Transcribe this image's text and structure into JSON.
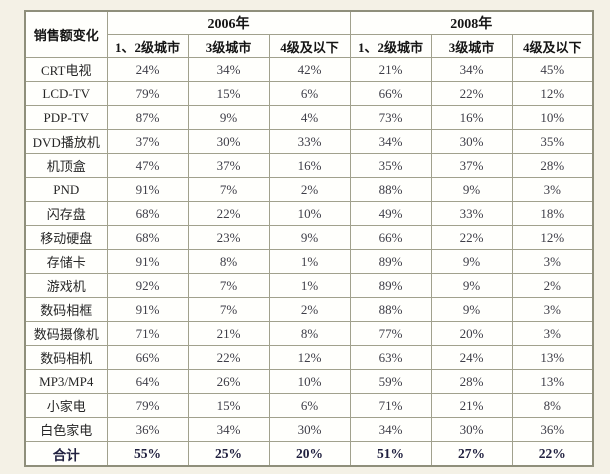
{
  "table": {
    "corner_label": "销售额变化",
    "year_groups": [
      {
        "label": "2006年",
        "columns": [
          "1、2级城市",
          "3级城市",
          "4级及以下"
        ]
      },
      {
        "label": "2008年",
        "columns": [
          "1、2级城市",
          "3级城市",
          "4级及以下"
        ]
      }
    ],
    "rows": [
      {
        "label": "CRT电视",
        "values": [
          "24%",
          "34%",
          "42%",
          "21%",
          "34%",
          "45%"
        ]
      },
      {
        "label": "LCD-TV",
        "values": [
          "79%",
          "15%",
          "6%",
          "66%",
          "22%",
          "12%"
        ]
      },
      {
        "label": "PDP-TV",
        "values": [
          "87%",
          "9%",
          "4%",
          "73%",
          "16%",
          "10%"
        ]
      },
      {
        "label": "DVD播放机",
        "values": [
          "37%",
          "30%",
          "33%",
          "34%",
          "30%",
          "35%"
        ]
      },
      {
        "label": "机顶盒",
        "values": [
          "47%",
          "37%",
          "16%",
          "35%",
          "37%",
          "28%"
        ]
      },
      {
        "label": "PND",
        "values": [
          "91%",
          "7%",
          "2%",
          "88%",
          "9%",
          "3%"
        ]
      },
      {
        "label": "闪存盘",
        "values": [
          "68%",
          "22%",
          "10%",
          "49%",
          "33%",
          "18%"
        ]
      },
      {
        "label": "移动硬盘",
        "values": [
          "68%",
          "23%",
          "9%",
          "66%",
          "22%",
          "12%"
        ]
      },
      {
        "label": "存储卡",
        "values": [
          "91%",
          "8%",
          "1%",
          "89%",
          "9%",
          "3%"
        ]
      },
      {
        "label": "游戏机",
        "values": [
          "92%",
          "7%",
          "1%",
          "89%",
          "9%",
          "2%"
        ]
      },
      {
        "label": "数码相框",
        "values": [
          "91%",
          "7%",
          "2%",
          "88%",
          "9%",
          "3%"
        ]
      },
      {
        "label": "数码摄像机",
        "values": [
          "71%",
          "21%",
          "8%",
          "77%",
          "20%",
          "3%"
        ]
      },
      {
        "label": "数码相机",
        "values": [
          "66%",
          "22%",
          "12%",
          "63%",
          "24%",
          "13%"
        ]
      },
      {
        "label": "MP3/MP4",
        "values": [
          "64%",
          "26%",
          "10%",
          "59%",
          "28%",
          "13%"
        ]
      },
      {
        "label": "小家电",
        "values": [
          "79%",
          "15%",
          "6%",
          "71%",
          "21%",
          "8%"
        ]
      },
      {
        "label": "白色家电",
        "values": [
          "36%",
          "34%",
          "30%",
          "34%",
          "30%",
          "36%"
        ]
      },
      {
        "label": "合计",
        "values": [
          "55%",
          "25%",
          "20%",
          "51%",
          "27%",
          "22%"
        ],
        "is_total": true
      }
    ]
  },
  "colors": {
    "page_background": "#f4f1e6",
    "cell_background": "#fffffc",
    "inner_border": "#a1a18d",
    "outer_border": "#8f8f7b",
    "value_text": "#3e3e48",
    "header_text": "#141414",
    "total_text": "#20203f"
  },
  "chart_data": {
    "type": "table",
    "title": "销售额变化",
    "column_groups": [
      "2006年",
      "2008年"
    ],
    "columns": [
      "销售额变化",
      "2006年 1、2级城市",
      "2006年 3级城市",
      "2006年 4级及以下",
      "2008年 1、2级城市",
      "2008年 3级城市",
      "2008年 4级及以下"
    ],
    "unit": "percent",
    "rows": [
      [
        "CRT电视",
        24,
        34,
        42,
        21,
        34,
        45
      ],
      [
        "LCD-TV",
        79,
        15,
        6,
        66,
        22,
        12
      ],
      [
        "PDP-TV",
        87,
        9,
        4,
        73,
        16,
        10
      ],
      [
        "DVD播放机",
        37,
        30,
        33,
        34,
        30,
        35
      ],
      [
        "机顶盒",
        47,
        37,
        16,
        35,
        37,
        28
      ],
      [
        "PND",
        91,
        7,
        2,
        88,
        9,
        3
      ],
      [
        "闪存盘",
        68,
        22,
        10,
        49,
        33,
        18
      ],
      [
        "移动硬盘",
        68,
        23,
        9,
        66,
        22,
        12
      ],
      [
        "存储卡",
        91,
        8,
        1,
        89,
        9,
        3
      ],
      [
        "游戏机",
        92,
        7,
        1,
        89,
        9,
        2
      ],
      [
        "数码相框",
        91,
        7,
        2,
        88,
        9,
        3
      ],
      [
        "数码摄像机",
        71,
        21,
        8,
        77,
        20,
        3
      ],
      [
        "数码相机",
        66,
        22,
        12,
        63,
        24,
        13
      ],
      [
        "MP3/MP4",
        64,
        26,
        10,
        59,
        28,
        13
      ],
      [
        "小家电",
        79,
        15,
        6,
        71,
        21,
        8
      ],
      [
        "白色家电",
        36,
        34,
        30,
        34,
        30,
        36
      ],
      [
        "合计",
        55,
        25,
        20,
        51,
        27,
        22
      ]
    ]
  }
}
